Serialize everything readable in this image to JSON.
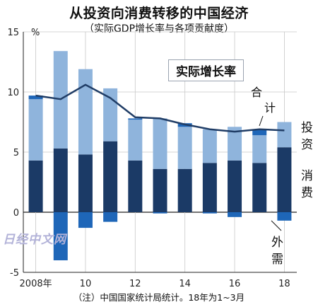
{
  "header": {
    "title": "从投资向消费转移的中国经济",
    "subtitle": "（实际GDP增长率与各项贡献度）"
  },
  "footer": {
    "note": "（注）中国国家统计局统计。18年为1~3月"
  },
  "watermark": "日经中文网",
  "callout": "实际增长率",
  "colors": {
    "investment": "#8fb4dc",
    "consumption": "#1b3a66",
    "external": "#1e66b8",
    "line": "#203d66"
  },
  "chart_data": {
    "type": "bar",
    "title": "从投资向消费转移的中国经济",
    "subtitle": "（实际GDP增长率与各项贡献度）",
    "ylabel": "%",
    "ylim": [
      -5,
      15
    ],
    "yticks": [
      "15",
      "10",
      "5",
      "0",
      "-5"
    ],
    "xtick_labels": [
      "2008年",
      "10",
      "12",
      "14",
      "16",
      "18"
    ],
    "categories": [
      "2008",
      "2009",
      "2010",
      "2011",
      "2012",
      "2013",
      "2014",
      "2015",
      "2016",
      "2017",
      "2018"
    ],
    "series": [
      {
        "name": "消费",
        "values": [
          4.3,
          5.3,
          4.8,
          5.9,
          4.3,
          3.6,
          3.6,
          4.1,
          4.3,
          4.1,
          5.4
        ]
      },
      {
        "name": "投资",
        "values": [
          5.1,
          8.1,
          7.1,
          4.4,
          3.4,
          4.2,
          3.5,
          2.8,
          2.8,
          2.3,
          2.1
        ]
      },
      {
        "name": "外需",
        "values": [
          0.3,
          -4.0,
          -1.3,
          -0.8,
          0.1,
          -0.1,
          0.3,
          -0.1,
          -0.4,
          0.5,
          -0.7
        ]
      },
      {
        "name": "合计",
        "values": [
          9.7,
          9.4,
          10.6,
          9.5,
          7.9,
          7.8,
          7.3,
          6.9,
          6.7,
          6.9,
          6.8
        ]
      }
    ],
    "series_labels": {
      "total": [
        "合",
        "计"
      ],
      "investment": [
        "投",
        "资"
      ],
      "consumption": [
        "消",
        "费"
      ],
      "external": [
        "外",
        "需"
      ]
    },
    "grid": true,
    "legend": "inline labels on right"
  }
}
